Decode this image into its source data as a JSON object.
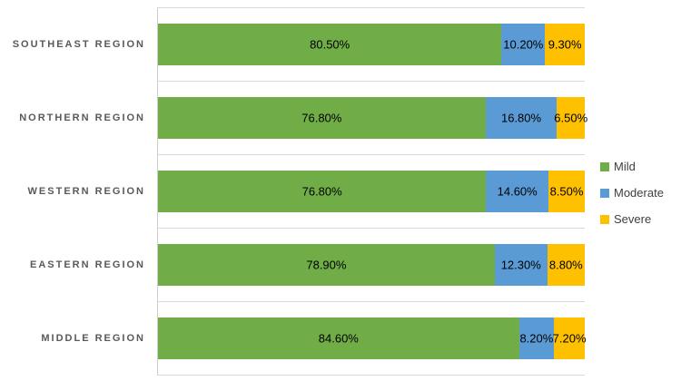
{
  "chart_data": {
    "type": "bar",
    "orientation": "horizontal-stacked",
    "title": "",
    "xlabel": "",
    "ylabel": "",
    "xlim": [
      0,
      100
    ],
    "grid": "category-separator-lines",
    "legend_position": "right",
    "categories": [
      "SOUTHEAST REGION",
      "NORTHERN REGION",
      "WESTERN REGION",
      "EASTERN REGION",
      "MIDDLE REGION"
    ],
    "series": [
      {
        "name": "Mild",
        "color": "#70AD47",
        "values": [
          80.5,
          76.8,
          76.8,
          78.9,
          84.6
        ],
        "labels": [
          "80.50%",
          "76.80%",
          "76.80%",
          "78.90%",
          "84.60%"
        ]
      },
      {
        "name": "Moderate",
        "color": "#5B9BD5",
        "values": [
          10.2,
          16.8,
          14.6,
          12.3,
          8.2
        ],
        "labels": [
          "10.20%",
          "16.80%",
          "14.60%",
          "12.30%",
          "8.20%"
        ]
      },
      {
        "name": "Severe",
        "color": "#FFC000",
        "values": [
          9.3,
          6.5,
          8.5,
          8.8,
          7.2
        ],
        "labels": [
          "9.30%",
          "6.50%",
          "8.50%",
          "8.80%",
          "7.20%"
        ]
      }
    ],
    "style_colors": {
      "gridline": "#D9D9D9",
      "axis_line": "#CDCDCD",
      "category_label_text": "#595959",
      "data_label_text": "#000000",
      "legend_text": "#404040"
    }
  }
}
